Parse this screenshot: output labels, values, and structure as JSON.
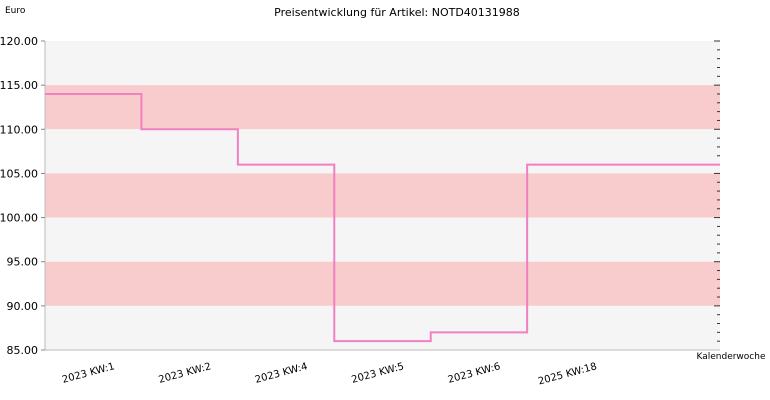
{
  "chart_data": {
    "type": "line",
    "step": true,
    "title": "Preisentwicklung für Artikel: NOTD40131988",
    "ylabel": "Euro",
    "xlabel": "Kalenderwoche",
    "ylim": [
      85,
      120
    ],
    "yticks": [
      "120.00",
      "115.00",
      "110.00",
      "105.00",
      "100.00",
      "95.00",
      "90.00",
      "85.00"
    ],
    "categories": [
      "2023 KW:1",
      "2023 KW:2",
      "2023 KW:4",
      "2023 KW:5",
      "2023 KW:6",
      "2025 KW:18"
    ],
    "series": [
      {
        "values": [
          114,
          110,
          106,
          86,
          87,
          106
        ]
      }
    ],
    "band_colors": [
      "#f8cccc",
      "#f5f5f5"
    ],
    "line_color": "#f080c0",
    "grid": true
  }
}
